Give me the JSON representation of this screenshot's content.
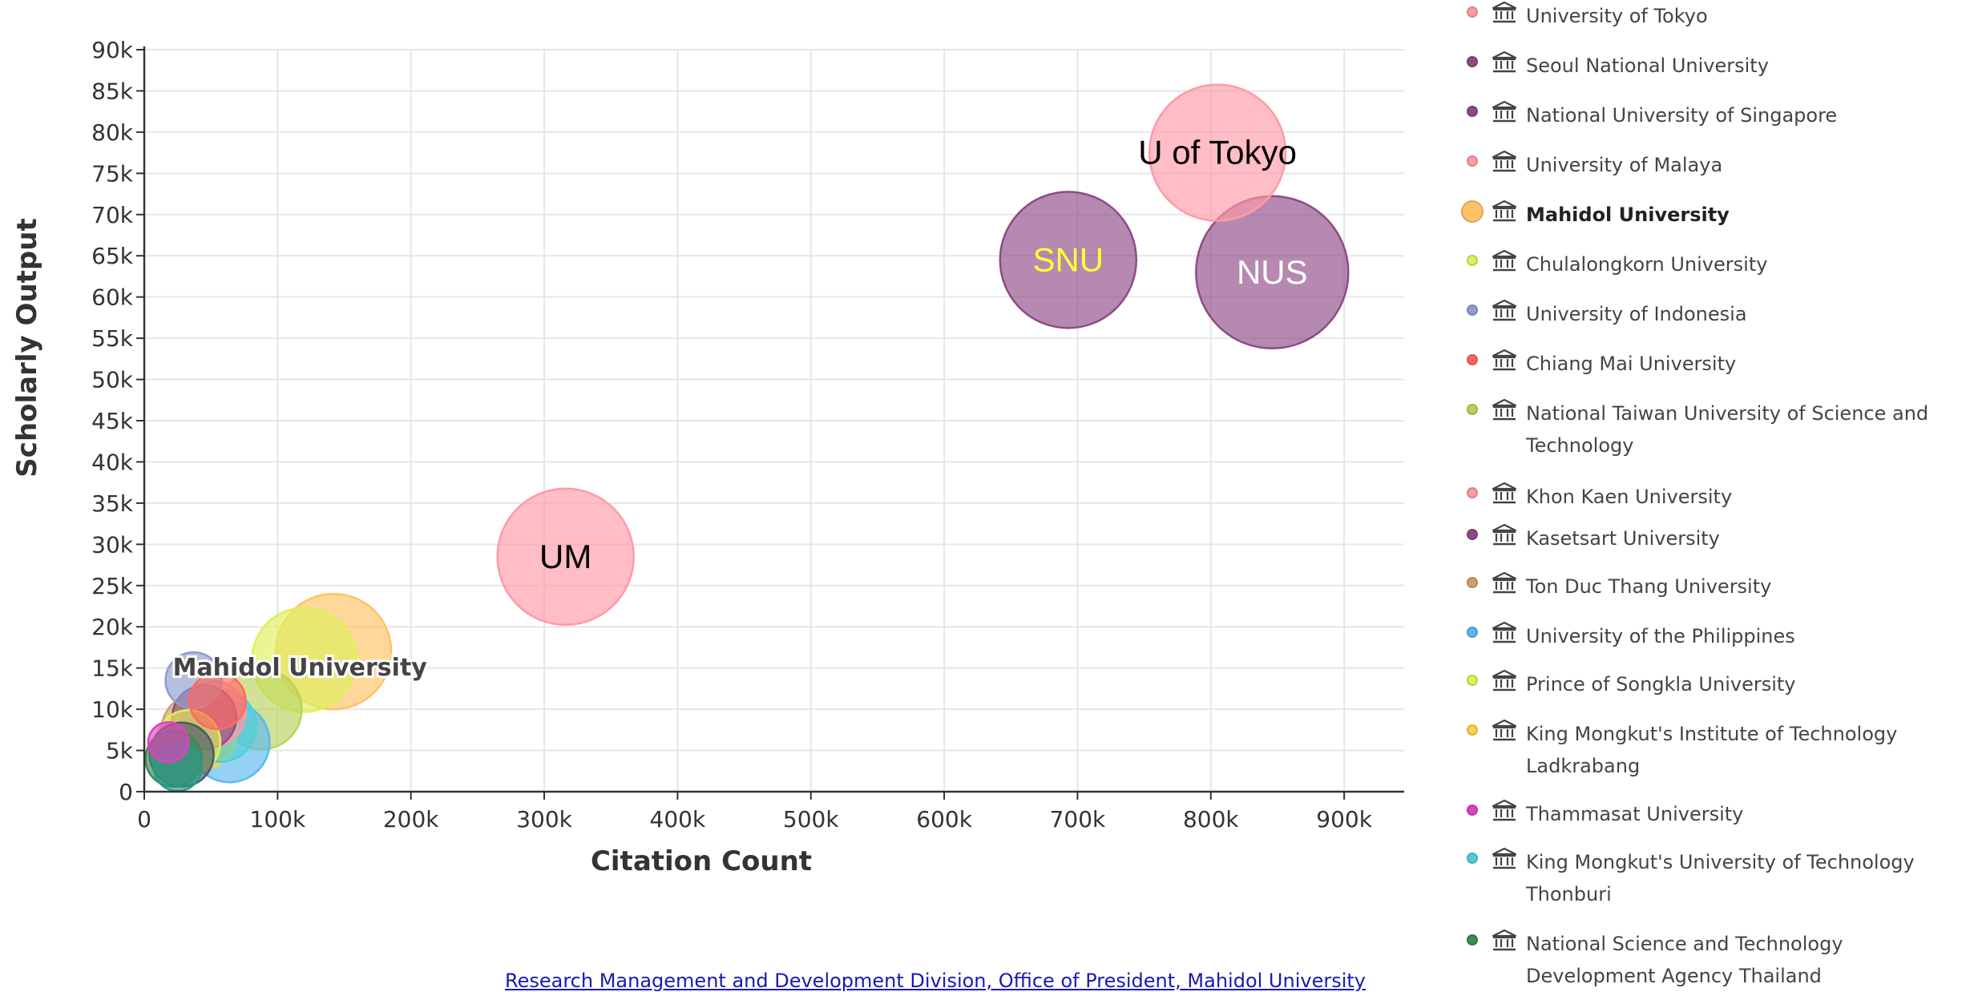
{
  "chart_data": {
    "type": "scatter",
    "bubble": true,
    "xlabel": "Citation Count",
    "ylabel": "Scholarly Output",
    "xlim": [
      0,
      945000
    ],
    "ylim": [
      0,
      90000
    ],
    "x_ticks": [
      0,
      100000,
      200000,
      300000,
      400000,
      500000,
      600000,
      700000,
      800000,
      900000
    ],
    "x_tick_labels": [
      "0",
      "100k",
      "200k",
      "300k",
      "400k",
      "500k",
      "600k",
      "700k",
      "800k",
      "900k"
    ],
    "y_ticks": [
      0,
      5000,
      10000,
      15000,
      20000,
      25000,
      30000,
      35000,
      40000,
      45000,
      50000,
      55000,
      60000,
      65000,
      70000,
      75000,
      80000,
      85000,
      90000
    ],
    "y_tick_labels": [
      "0",
      "5k",
      "10k",
      "15k",
      "20k",
      "25k",
      "30k",
      "35k",
      "40k",
      "45k",
      "50k",
      "55k",
      "60k",
      "65k",
      "70k",
      "75k",
      "80k",
      "85k",
      "90k"
    ],
    "grid": true,
    "legend_position": "right",
    "series": [
      {
        "name": "University of Tokyo",
        "color": "#ff9aa6",
        "x": 805000,
        "y": 77500,
        "label": "U of Tokyo",
        "label_color": "#000000",
        "size": 85
      },
      {
        "name": "Seoul National University",
        "color": "#8e4a86",
        "x": 693000,
        "y": 64500,
        "label": "SNU",
        "label_color": "#ffff33",
        "size": 85
      },
      {
        "name": "National University of Singapore",
        "color": "#8e4a86",
        "x": 846000,
        "y": 63000,
        "label": "NUS",
        "label_color": "#ffffff",
        "size": 95
      },
      {
        "name": "University of Malaya",
        "color": "#ff9aa6",
        "x": 316000,
        "y": 28500,
        "label": "UM",
        "label_color": "#000000",
        "size": 85
      },
      {
        "name": "Mahidol University",
        "color": "#ffc266",
        "x": 142000,
        "y": 17000,
        "label": "Mahidol University",
        "label_color": "#444444",
        "size": 72,
        "highlight": true
      },
      {
        "name": "Chulalongkorn University",
        "color": "#dff05a",
        "x": 120000,
        "y": 16000,
        "size": 65
      },
      {
        "name": "University of Indonesia",
        "color": "#8f9ccc",
        "x": 37000,
        "y": 13500,
        "size": 35
      },
      {
        "name": "Chiang Mai University",
        "color": "#ff6a5e",
        "x": 55000,
        "y": 11000,
        "size": 35
      },
      {
        "name": "National Taiwan University of Science and Technology",
        "color": "#b9d25a",
        "x": 88000,
        "y": 10000,
        "size": 50
      },
      {
        "name": "Khon Kaen University",
        "color": "#ff9aa6",
        "x": 52000,
        "y": 9500,
        "size": 40
      },
      {
        "name": "Kasetsart University",
        "color": "#8e4a86",
        "x": 45000,
        "y": 9000,
        "size": 40
      },
      {
        "name": "Ton Duc Thang University",
        "color": "#c9a36a",
        "x": 40000,
        "y": 7500,
        "size": 45
      },
      {
        "name": "University of the Philippines",
        "color": "#5bb8f0",
        "x": 64000,
        "y": 6000,
        "size": 50
      },
      {
        "name": "Prince of Songkla University",
        "color": "#dff05a",
        "x": 33000,
        "y": 6000,
        "size": 40
      },
      {
        "name": "King Mongkut's Institute of Technology Ladkrabang",
        "color": "#ffd24a",
        "x": 42000,
        "y": 7000,
        "size": 45
      },
      {
        "name": "Thammasat University",
        "color": "#e040c0",
        "x": 18000,
        "y": 6000,
        "size": 25
      },
      {
        "name": "King Mongkut's University of Technology Thonburi",
        "color": "#4fcfd6",
        "x": 57000,
        "y": 8000,
        "size": 45
      },
      {
        "name": "National Science and Technology Development Agency Thailand",
        "color": "#3d8a5a",
        "x": 22000,
        "y": 4000,
        "size": 35
      },
      {
        "name": "",
        "color": "#4a5a6a",
        "x": 28000,
        "y": 4500,
        "size": 40
      },
      {
        "name": "",
        "color": "#2a9a8a",
        "x": 25000,
        "y": 3000,
        "size": 30
      }
    ]
  },
  "legend": {
    "items": [
      {
        "label": "University of Tokyo",
        "color": "#ff9aa6"
      },
      {
        "label": "Seoul National University",
        "color": "#8e4a86"
      },
      {
        "label": "National University of Singapore",
        "color": "#8e4a86"
      },
      {
        "label": "University of Malaya",
        "color": "#ff9aa6"
      },
      {
        "label": "Mahidol University",
        "color": "#ffc266",
        "highlight": true
      },
      {
        "label": "Chulalongkorn University",
        "color": "#dff05a"
      },
      {
        "label": "University of Indonesia",
        "color": "#8f9ccc"
      },
      {
        "label": "Chiang Mai University",
        "color": "#ff6a5e"
      },
      {
        "label": "National Taiwan University of Science and Technology",
        "color": "#b9d25a"
      },
      {
        "label": "Khon Kaen University",
        "color": "#ff9aa6"
      },
      {
        "label": "Kasetsart University",
        "color": "#8e4a86"
      },
      {
        "label": "Ton Duc Thang University",
        "color": "#c9a36a"
      },
      {
        "label": "University of the Philippines",
        "color": "#5bb8f0"
      },
      {
        "label": "Prince of Songkla University",
        "color": "#dff05a"
      },
      {
        "label": "King Mongkut's Institute of Technology Ladkrabang",
        "color": "#ffd24a"
      },
      {
        "label": "Thammasat University",
        "color": "#e040c0"
      },
      {
        "label": "King Mongkut's University of Technology Thonburi",
        "color": "#4fcfd6"
      },
      {
        "label": "National Science and Technology Development Agency Thailand",
        "color": "#3d8a5a"
      }
    ],
    "icon": "institution-icon"
  },
  "footer": {
    "text": "Research Management and Development Division, Office of President, Mahidol University"
  }
}
